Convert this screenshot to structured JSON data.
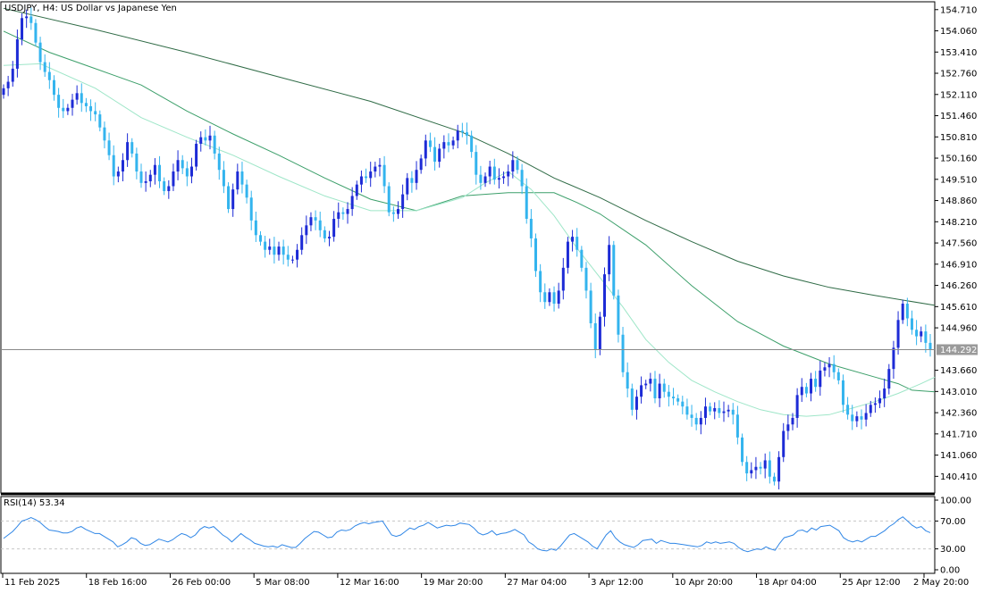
{
  "window": {
    "title": "USDJPY, H4:  US Dollar vs Japanese Yen"
  },
  "colors": {
    "background": "#ffffff",
    "frame": "#000000",
    "bull_candle": "#1d2bd6",
    "bear_candle": "#33b4ee",
    "ma_fast": "#9ee6c8",
    "ma_mid": "#3c9f6a",
    "ma_slow": "#2f6b46",
    "price_line": "#8a8a8a",
    "price_label_bg": "#9a9a9a",
    "rsi_line": "#2f86e6",
    "rsi_level": "#c6c6c6"
  },
  "chart_data": [
    {
      "type": "candlestick",
      "symbol": "USDJPY",
      "timeframe": "H4",
      "title": "USDJPY, H4:  US Dollar vs Japanese Yen",
      "ylim": [
        139.9,
        154.95
      ],
      "y_ticks": [
        "154.710",
        "154.060",
        "153.410",
        "152.760",
        "152.110",
        "151.460",
        "150.810",
        "150.160",
        "149.510",
        "148.860",
        "148.210",
        "147.560",
        "146.910",
        "146.260",
        "145.610",
        "144.960",
        "143.660",
        "143.010",
        "142.360",
        "141.710",
        "141.060",
        "140.410"
      ],
      "x_ticks": [
        "11 Feb 2025",
        "18 Feb 16:00",
        "26 Feb 00:00",
        "5 Mar 08:00",
        "12 Mar 16:00",
        "19 Mar 20:00",
        "27 Mar 04:00",
        "3 Apr 12:00",
        "10 Apr 20:00",
        "18 Apr 04:00",
        "25 Apr 12:00",
        "2 May 20:00"
      ],
      "current_price": "144.292",
      "close_path": [
        [
          0,
          152.3
        ],
        [
          2,
          152.5
        ],
        [
          3,
          152.9
        ],
        [
          4,
          153.8
        ],
        [
          5,
          154.45
        ],
        [
          6,
          154.5
        ],
        [
          7,
          154.3
        ],
        [
          8,
          153.7
        ],
        [
          9,
          153.1
        ],
        [
          10,
          152.8
        ],
        [
          11,
          152.55
        ],
        [
          12,
          152.1
        ],
        [
          13,
          151.7
        ],
        [
          14,
          151.6
        ],
        [
          15,
          151.7
        ],
        [
          16,
          151.95
        ],
        [
          17,
          152.15
        ],
        [
          18,
          151.85
        ],
        [
          19,
          151.75
        ],
        [
          20,
          151.6
        ],
        [
          21,
          151.5
        ],
        [
          22,
          151.1
        ],
        [
          23,
          150.7
        ],
        [
          24,
          150.25
        ],
        [
          25,
          149.6
        ],
        [
          26,
          149.75
        ],
        [
          27,
          150.1
        ],
        [
          28,
          150.65
        ],
        [
          29,
          150.3
        ],
        [
          30,
          149.75
        ],
        [
          31,
          149.4
        ],
        [
          32,
          149.45
        ],
        [
          33,
          149.65
        ],
        [
          34,
          149.95
        ],
        [
          35,
          149.45
        ],
        [
          36,
          149.15
        ],
        [
          37,
          149.3
        ],
        [
          38,
          149.75
        ],
        [
          39,
          150.1
        ],
        [
          40,
          149.85
        ],
        [
          41,
          149.6
        ],
        [
          42,
          149.9
        ],
        [
          43,
          150.6
        ],
        [
          44,
          150.8
        ],
        [
          45,
          150.7
        ],
        [
          46,
          150.85
        ],
        [
          47,
          150.3
        ],
        [
          48,
          149.8
        ],
        [
          49,
          149.3
        ],
        [
          50,
          148.6
        ],
        [
          51,
          149.2
        ],
        [
          52,
          149.75
        ],
        [
          53,
          149.35
        ],
        [
          54,
          148.95
        ],
        [
          55,
          148.25
        ],
        [
          56,
          147.8
        ],
        [
          57,
          147.6
        ],
        [
          58,
          147.35
        ],
        [
          59,
          147.45
        ],
        [
          60,
          147.2
        ],
        [
          61,
          147.45
        ],
        [
          62,
          147.2
        ],
        [
          63,
          147.05
        ],
        [
          64,
          147.05
        ],
        [
          65,
          147.35
        ],
        [
          66,
          147.8
        ],
        [
          67,
          148.1
        ],
        [
          68,
          148.35
        ],
        [
          69,
          148.25
        ],
        [
          70,
          147.95
        ],
        [
          71,
          147.7
        ],
        [
          72,
          147.75
        ],
        [
          73,
          148.3
        ],
        [
          74,
          148.5
        ],
        [
          75,
          148.45
        ],
        [
          76,
          148.6
        ],
        [
          77,
          149.0
        ],
        [
          78,
          149.35
        ],
        [
          79,
          149.6
        ],
        [
          80,
          149.55
        ],
        [
          81,
          149.75
        ],
        [
          82,
          149.9
        ],
        [
          83,
          149.95
        ],
        [
          84,
          149.3
        ],
        [
          85,
          148.5
        ],
        [
          86,
          148.45
        ],
        [
          87,
          148.6
        ],
        [
          88,
          149.05
        ],
        [
          89,
          149.55
        ],
        [
          90,
          149.4
        ],
        [
          91,
          149.8
        ],
        [
          92,
          150.15
        ],
        [
          93,
          150.7
        ],
        [
          94,
          150.5
        ],
        [
          95,
          150.05
        ],
        [
          96,
          150.45
        ],
        [
          97,
          150.65
        ],
        [
          98,
          150.55
        ],
        [
          99,
          150.7
        ],
        [
          100,
          151.0
        ],
        [
          101,
          150.95
        ],
        [
          102,
          150.85
        ],
        [
          103,
          150.35
        ],
        [
          104,
          149.65
        ],
        [
          105,
          149.4
        ],
        [
          106,
          149.6
        ],
        [
          107,
          149.9
        ],
        [
          108,
          149.5
        ],
        [
          109,
          149.55
        ],
        [
          110,
          149.6
        ],
        [
          111,
          149.75
        ],
        [
          112,
          150.1
        ],
        [
          113,
          149.8
        ],
        [
          114,
          149.3
        ],
        [
          115,
          148.3
        ],
        [
          116,
          147.7
        ],
        [
          117,
          146.7
        ],
        [
          118,
          146.05
        ],
        [
          119,
          145.75
        ],
        [
          120,
          146.05
        ],
        [
          121,
          145.7
        ],
        [
          122,
          146.1
        ],
        [
          123,
          146.8
        ],
        [
          124,
          147.6
        ],
        [
          125,
          147.75
        ],
        [
          126,
          147.35
        ],
        [
          127,
          146.8
        ],
        [
          128,
          146.1
        ],
        [
          129,
          145.1
        ],
        [
          130,
          144.3
        ],
        [
          131,
          145.3
        ],
        [
          132,
          146.6
        ],
        [
          133,
          147.5
        ],
        [
          134,
          145.95
        ],
        [
          135,
          144.75
        ],
        [
          136,
          143.6
        ],
        [
          137,
          143.1
        ],
        [
          138,
          142.45
        ],
        [
          139,
          142.85
        ],
        [
          140,
          143.2
        ],
        [
          141,
          143.25
        ],
        [
          142,
          143.4
        ],
        [
          143,
          142.8
        ],
        [
          144,
          143.25
        ],
        [
          145,
          143.0
        ],
        [
          146,
          142.85
        ],
        [
          147,
          142.8
        ],
        [
          148,
          142.7
        ],
        [
          149,
          142.55
        ],
        [
          150,
          142.3
        ],
        [
          151,
          142.2
        ],
        [
          152,
          142.0
        ],
        [
          153,
          142.2
        ],
        [
          154,
          142.55
        ],
        [
          155,
          142.4
        ],
        [
          156,
          142.5
        ],
        [
          157,
          142.35
        ],
        [
          158,
          142.4
        ],
        [
          159,
          142.45
        ],
        [
          160,
          142.3
        ],
        [
          161,
          141.6
        ],
        [
          162,
          140.85
        ],
        [
          163,
          140.5
        ],
        [
          164,
          140.6
        ],
        [
          165,
          140.7
        ],
        [
          166,
          140.65
        ],
        [
          167,
          140.9
        ],
        [
          168,
          140.4
        ],
        [
          169,
          140.25
        ],
        [
          170,
          141.0
        ],
        [
          171,
          141.8
        ],
        [
          172,
          142.0
        ],
        [
          173,
          142.2
        ],
        [
          174,
          142.9
        ],
        [
          175,
          143.15
        ],
        [
          176,
          142.95
        ],
        [
          177,
          143.4
        ],
        [
          178,
          143.15
        ],
        [
          179,
          143.65
        ],
        [
          180,
          143.75
        ],
        [
          181,
          143.85
        ],
        [
          182,
          143.6
        ],
        [
          183,
          143.35
        ],
        [
          184,
          142.6
        ],
        [
          185,
          142.3
        ],
        [
          186,
          142.1
        ],
        [
          187,
          142.25
        ],
        [
          188,
          142.15
        ],
        [
          189,
          142.35
        ],
        [
          190,
          142.6
        ],
        [
          191,
          142.65
        ],
        [
          192,
          142.8
        ],
        [
          193,
          143.1
        ],
        [
          194,
          143.7
        ],
        [
          195,
          144.35
        ],
        [
          196,
          145.2
        ],
        [
          197,
          145.7
        ],
        [
          198,
          145.25
        ],
        [
          199,
          144.9
        ],
        [
          200,
          144.7
        ],
        [
          201,
          144.85
        ],
        [
          202,
          144.5
        ],
        [
          203,
          144.29
        ]
      ],
      "ma_fast_path": [
        [
          0,
          153.0
        ],
        [
          8,
          153.05
        ],
        [
          20,
          152.3
        ],
        [
          30,
          151.4
        ],
        [
          40,
          150.8
        ],
        [
          50,
          150.25
        ],
        [
          60,
          149.6
        ],
        [
          70,
          149.0
        ],
        [
          80,
          148.55
        ],
        [
          90,
          148.55
        ],
        [
          100,
          148.95
        ],
        [
          105,
          149.4
        ],
        [
          110,
          149.75
        ],
        [
          115,
          149.2
        ],
        [
          120,
          148.4
        ],
        [
          125,
          147.4
        ],
        [
          130,
          146.5
        ],
        [
          135,
          145.6
        ],
        [
          140,
          144.6
        ],
        [
          145,
          143.9
        ],
        [
          150,
          143.35
        ],
        [
          155,
          143.0
        ],
        [
          160,
          142.7
        ],
        [
          165,
          142.45
        ],
        [
          170,
          142.3
        ],
        [
          175,
          142.25
        ],
        [
          180,
          142.3
        ],
        [
          185,
          142.5
        ],
        [
          190,
          142.7
        ],
        [
          195,
          142.95
        ],
        [
          200,
          143.25
        ],
        [
          203,
          143.45
        ]
      ],
      "ma_mid_path": [
        [
          0,
          154.05
        ],
        [
          10,
          153.4
        ],
        [
          20,
          152.9
        ],
        [
          30,
          152.4
        ],
        [
          40,
          151.6
        ],
        [
          50,
          150.9
        ],
        [
          60,
          150.25
        ],
        [
          70,
          149.55
        ],
        [
          80,
          148.9
        ],
        [
          90,
          148.55
        ],
        [
          100,
          149.0
        ],
        [
          110,
          149.1
        ],
        [
          120,
          149.1
        ],
        [
          125,
          148.8
        ],
        [
          130,
          148.45
        ],
        [
          140,
          147.5
        ],
        [
          150,
          146.25
        ],
        [
          160,
          145.15
        ],
        [
          170,
          144.4
        ],
        [
          180,
          143.85
        ],
        [
          190,
          143.45
        ],
        [
          195,
          143.25
        ],
        [
          198,
          143.05
        ],
        [
          203,
          143.0
        ]
      ],
      "ma_slow_path": [
        [
          0,
          154.75
        ],
        [
          20,
          154.1
        ],
        [
          40,
          153.4
        ],
        [
          60,
          152.65
        ],
        [
          80,
          151.9
        ],
        [
          100,
          150.95
        ],
        [
          110,
          150.3
        ],
        [
          120,
          149.55
        ],
        [
          130,
          148.95
        ],
        [
          140,
          148.25
        ],
        [
          150,
          147.6
        ],
        [
          160,
          147.0
        ],
        [
          170,
          146.55
        ],
        [
          180,
          146.2
        ],
        [
          190,
          145.95
        ],
        [
          203,
          145.65
        ]
      ]
    },
    {
      "type": "line",
      "title": "RSI(14) 53.34",
      "ylim": [
        0,
        100
      ],
      "y_ticks": [
        "100.00",
        "70.00",
        "30.00",
        "0.00"
      ],
      "levels": [
        70,
        30
      ],
      "values": [
        45,
        50,
        55,
        62,
        70,
        72,
        75,
        72,
        68,
        62,
        57,
        56,
        55,
        53,
        53,
        55,
        60,
        62,
        58,
        55,
        52,
        52,
        48,
        44,
        40,
        33,
        36,
        40,
        46,
        44,
        38,
        35,
        36,
        40,
        44,
        42,
        40,
        43,
        48,
        52,
        50,
        46,
        50,
        58,
        62,
        60,
        62,
        56,
        50,
        46,
        40,
        46,
        52,
        47,
        43,
        38,
        36,
        34,
        33,
        34,
        32,
        36,
        34,
        32,
        32,
        38,
        45,
        50,
        55,
        54,
        50,
        46,
        47,
        54,
        57,
        56,
        58,
        63,
        66,
        68,
        66,
        68,
        69,
        70,
        60,
        50,
        48,
        50,
        55,
        60,
        58,
        62,
        64,
        68,
        64,
        60,
        62,
        64,
        63,
        64,
        67,
        66,
        65,
        60,
        53,
        50,
        52,
        56,
        50,
        52,
        53,
        55,
        58,
        54,
        50,
        40,
        36,
        30,
        28,
        27,
        30,
        28,
        34,
        42,
        50,
        52,
        48,
        44,
        40,
        34,
        30,
        40,
        50,
        56,
        46,
        40,
        36,
        34,
        32,
        36,
        42,
        43,
        44,
        38,
        42,
        40,
        38,
        38,
        37,
        36,
        35,
        34,
        33,
        35,
        40,
        38,
        40,
        38,
        39,
        40,
        38,
        32,
        28,
        26,
        28,
        30,
        29,
        33,
        30,
        28,
        38,
        46,
        48,
        50,
        56,
        57,
        54,
        60,
        57,
        62,
        63,
        64,
        60,
        56,
        46,
        42,
        40,
        42,
        40,
        44,
        48,
        48,
        52,
        56,
        62,
        66,
        72,
        76,
        70,
        64,
        60,
        62,
        56,
        53.34
      ]
    }
  ]
}
